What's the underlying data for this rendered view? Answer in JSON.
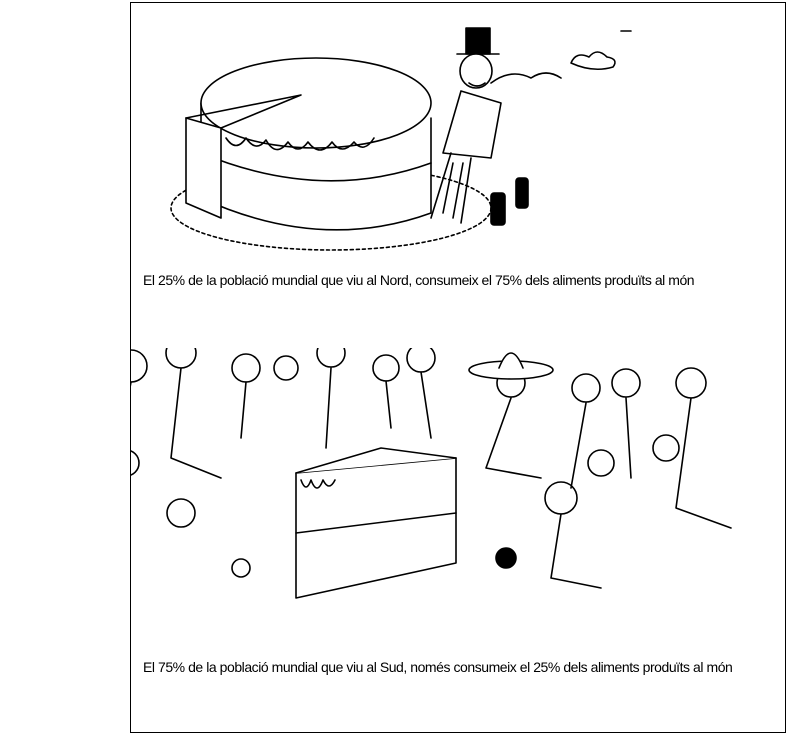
{
  "captions": {
    "north": "El 25% de la població mundial que viu al Nord, consumeix el 75% dels aliments produïts al món",
    "south": "El 75% de la població mundial que viu al Sud, només consumeix el 25% dels aliments produïts al món"
  }
}
